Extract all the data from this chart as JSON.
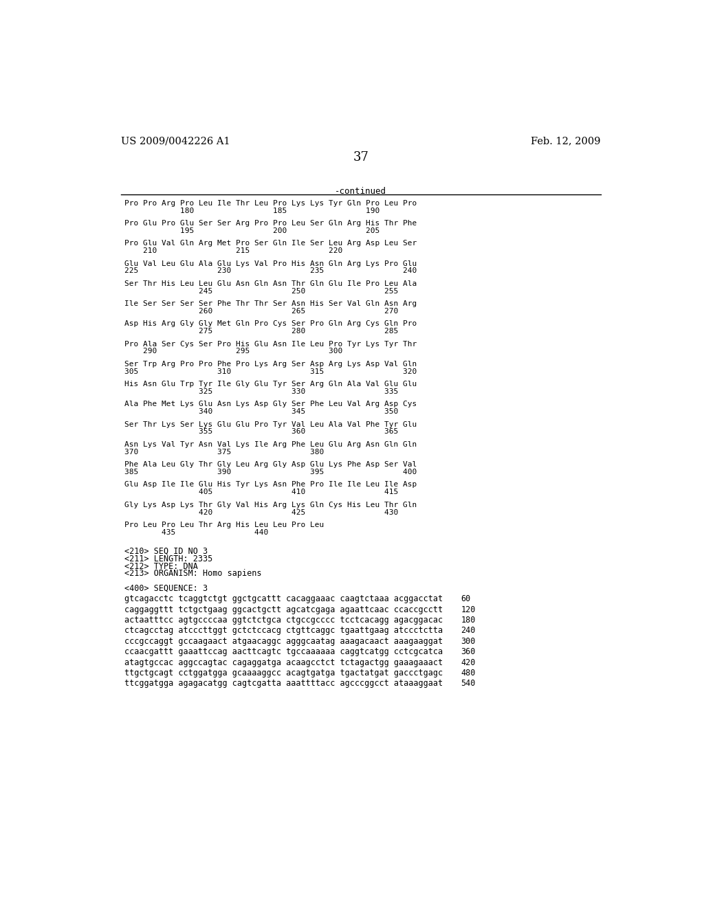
{
  "header_left": "US 2009/0042226 A1",
  "header_right": "Feb. 12, 2009",
  "page_number": "37",
  "continued_label": "-continued",
  "background_color": "#ffffff",
  "text_color": "#000000",
  "protein_blocks": [
    {
      "seq": "Pro Pro Arg Pro Leu Ile Thr Leu Pro Lys Lys Tyr Gln Pro Leu Pro",
      "num": "            180                 185                 190"
    },
    {
      "seq": "Pro Glu Pro Glu Ser Ser Arg Pro Pro Leu Ser Gln Arg His Thr Phe",
      "num": "            195                 200                 205"
    },
    {
      "seq": "Pro Glu Val Gln Arg Met Pro Ser Gln Ile Ser Leu Arg Asp Leu Ser",
      "num": "    210                 215                 220"
    },
    {
      "seq": "Glu Val Leu Glu Ala Glu Lys Val Pro His Asn Gln Arg Lys Pro Glu",
      "num": "225                 230                 235                 240"
    },
    {
      "seq": "Ser Thr His Leu Leu Glu Asn Gln Asn Thr Gln Glu Ile Pro Leu Ala",
      "num": "                245                 250                 255"
    },
    {
      "seq": "Ile Ser Ser Ser Ser Phe Thr Thr Ser Asn His Ser Val Gln Asn Arg",
      "num": "                260                 265                 270"
    },
    {
      "seq": "Asp His Arg Gly Gly Met Gln Pro Cys Ser Pro Gln Arg Cys Gln Pro",
      "num": "                275                 280                 285"
    },
    {
      "seq": "Pro Ala Ser Cys Ser Pro His Glu Asn Ile Leu Pro Tyr Lys Tyr Thr",
      "num": "    290                 295                 300"
    },
    {
      "seq": "Ser Trp Arg Pro Pro Phe Pro Lys Arg Ser Asp Arg Lys Asp Val Gln",
      "num": "305                 310                 315                 320"
    },
    {
      "seq": "His Asn Glu Trp Tyr Ile Gly Glu Tyr Ser Arg Gln Ala Val Glu Glu",
      "num": "                325                 330                 335"
    },
    {
      "seq": "Ala Phe Met Lys Glu Asn Lys Asp Gly Ser Phe Leu Val Arg Asp Cys",
      "num": "                340                 345                 350"
    },
    {
      "seq": "Ser Thr Lys Ser Lys Glu Glu Pro Tyr Val Leu Ala Val Phe Tyr Glu",
      "num": "                355                 360                 365"
    },
    {
      "seq": "Asn Lys Val Tyr Asn Val Lys Ile Arg Phe Leu Glu Arg Asn Gln Gln",
      "num": "370                 375                 380"
    },
    {
      "seq": "Phe Ala Leu Gly Thr Gly Leu Arg Gly Asp Glu Lys Phe Asp Ser Val",
      "num": "385                 390                 395                 400"
    },
    {
      "seq": "Glu Asp Ile Ile Glu His Tyr Lys Asn Phe Pro Ile Ile Leu Ile Asp",
      "num": "                405                 410                 415"
    },
    {
      "seq": "Gly Lys Asp Lys Thr Gly Val His Arg Lys Gln Cys His Leu Thr Gln",
      "num": "                420                 425                 430"
    },
    {
      "seq": "Pro Leu Pro Leu Thr Arg His Leu Leu Pro Leu",
      "num": "        435                 440"
    }
  ],
  "metadata_lines": [
    "<210> SEQ ID NO 3",
    "<211> LENGTH: 2335",
    "<212> TYPE: DNA",
    "<213> ORGANISM: Homo sapiens",
    "",
    "<400> SEQUENCE: 3"
  ],
  "dna_lines": [
    {
      "seq": "gtcagacctc tcaggtctgt ggctgcattt cacaggaaac caagtctaaa acggacctat",
      "num": "60"
    },
    {
      "seq": "caggaggttt tctgctgaag ggcactgctt agcatcgaga agaattcaac ccaccgcctt",
      "num": "120"
    },
    {
      "seq": "actaatttcc agtgccccaa ggtctctgca ctgccgcccc tcctcacagg agacggacac",
      "num": "180"
    },
    {
      "seq": "ctcagcctag atcccttggt gctctccacg ctgttcaggc tgaattgaag atccctctta",
      "num": "240"
    },
    {
      "seq": "cccgccaggt gccaagaact atgaacaggc agggcaatag aaagacaact aaagaaggat",
      "num": "300"
    },
    {
      "seq": "ccaacgattt gaaattccag aacttcagtc tgccaaaaaa caggtcatgg cctcgcatca",
      "num": "360"
    },
    {
      "seq": "atagtgccac aggccagtac cagaggatga acaagcctct tctagactgg gaaagaaact",
      "num": "420"
    },
    {
      "seq": "ttgctgcagt cctggatgga gcaaaaggcc acagtgatga tgactatgat gaccctgagc",
      "num": "480"
    },
    {
      "seq": "ttcggatgga agagacatgg cagtcgatta aaattttacc agcccggcct ataaaggaat",
      "num": "540"
    }
  ]
}
